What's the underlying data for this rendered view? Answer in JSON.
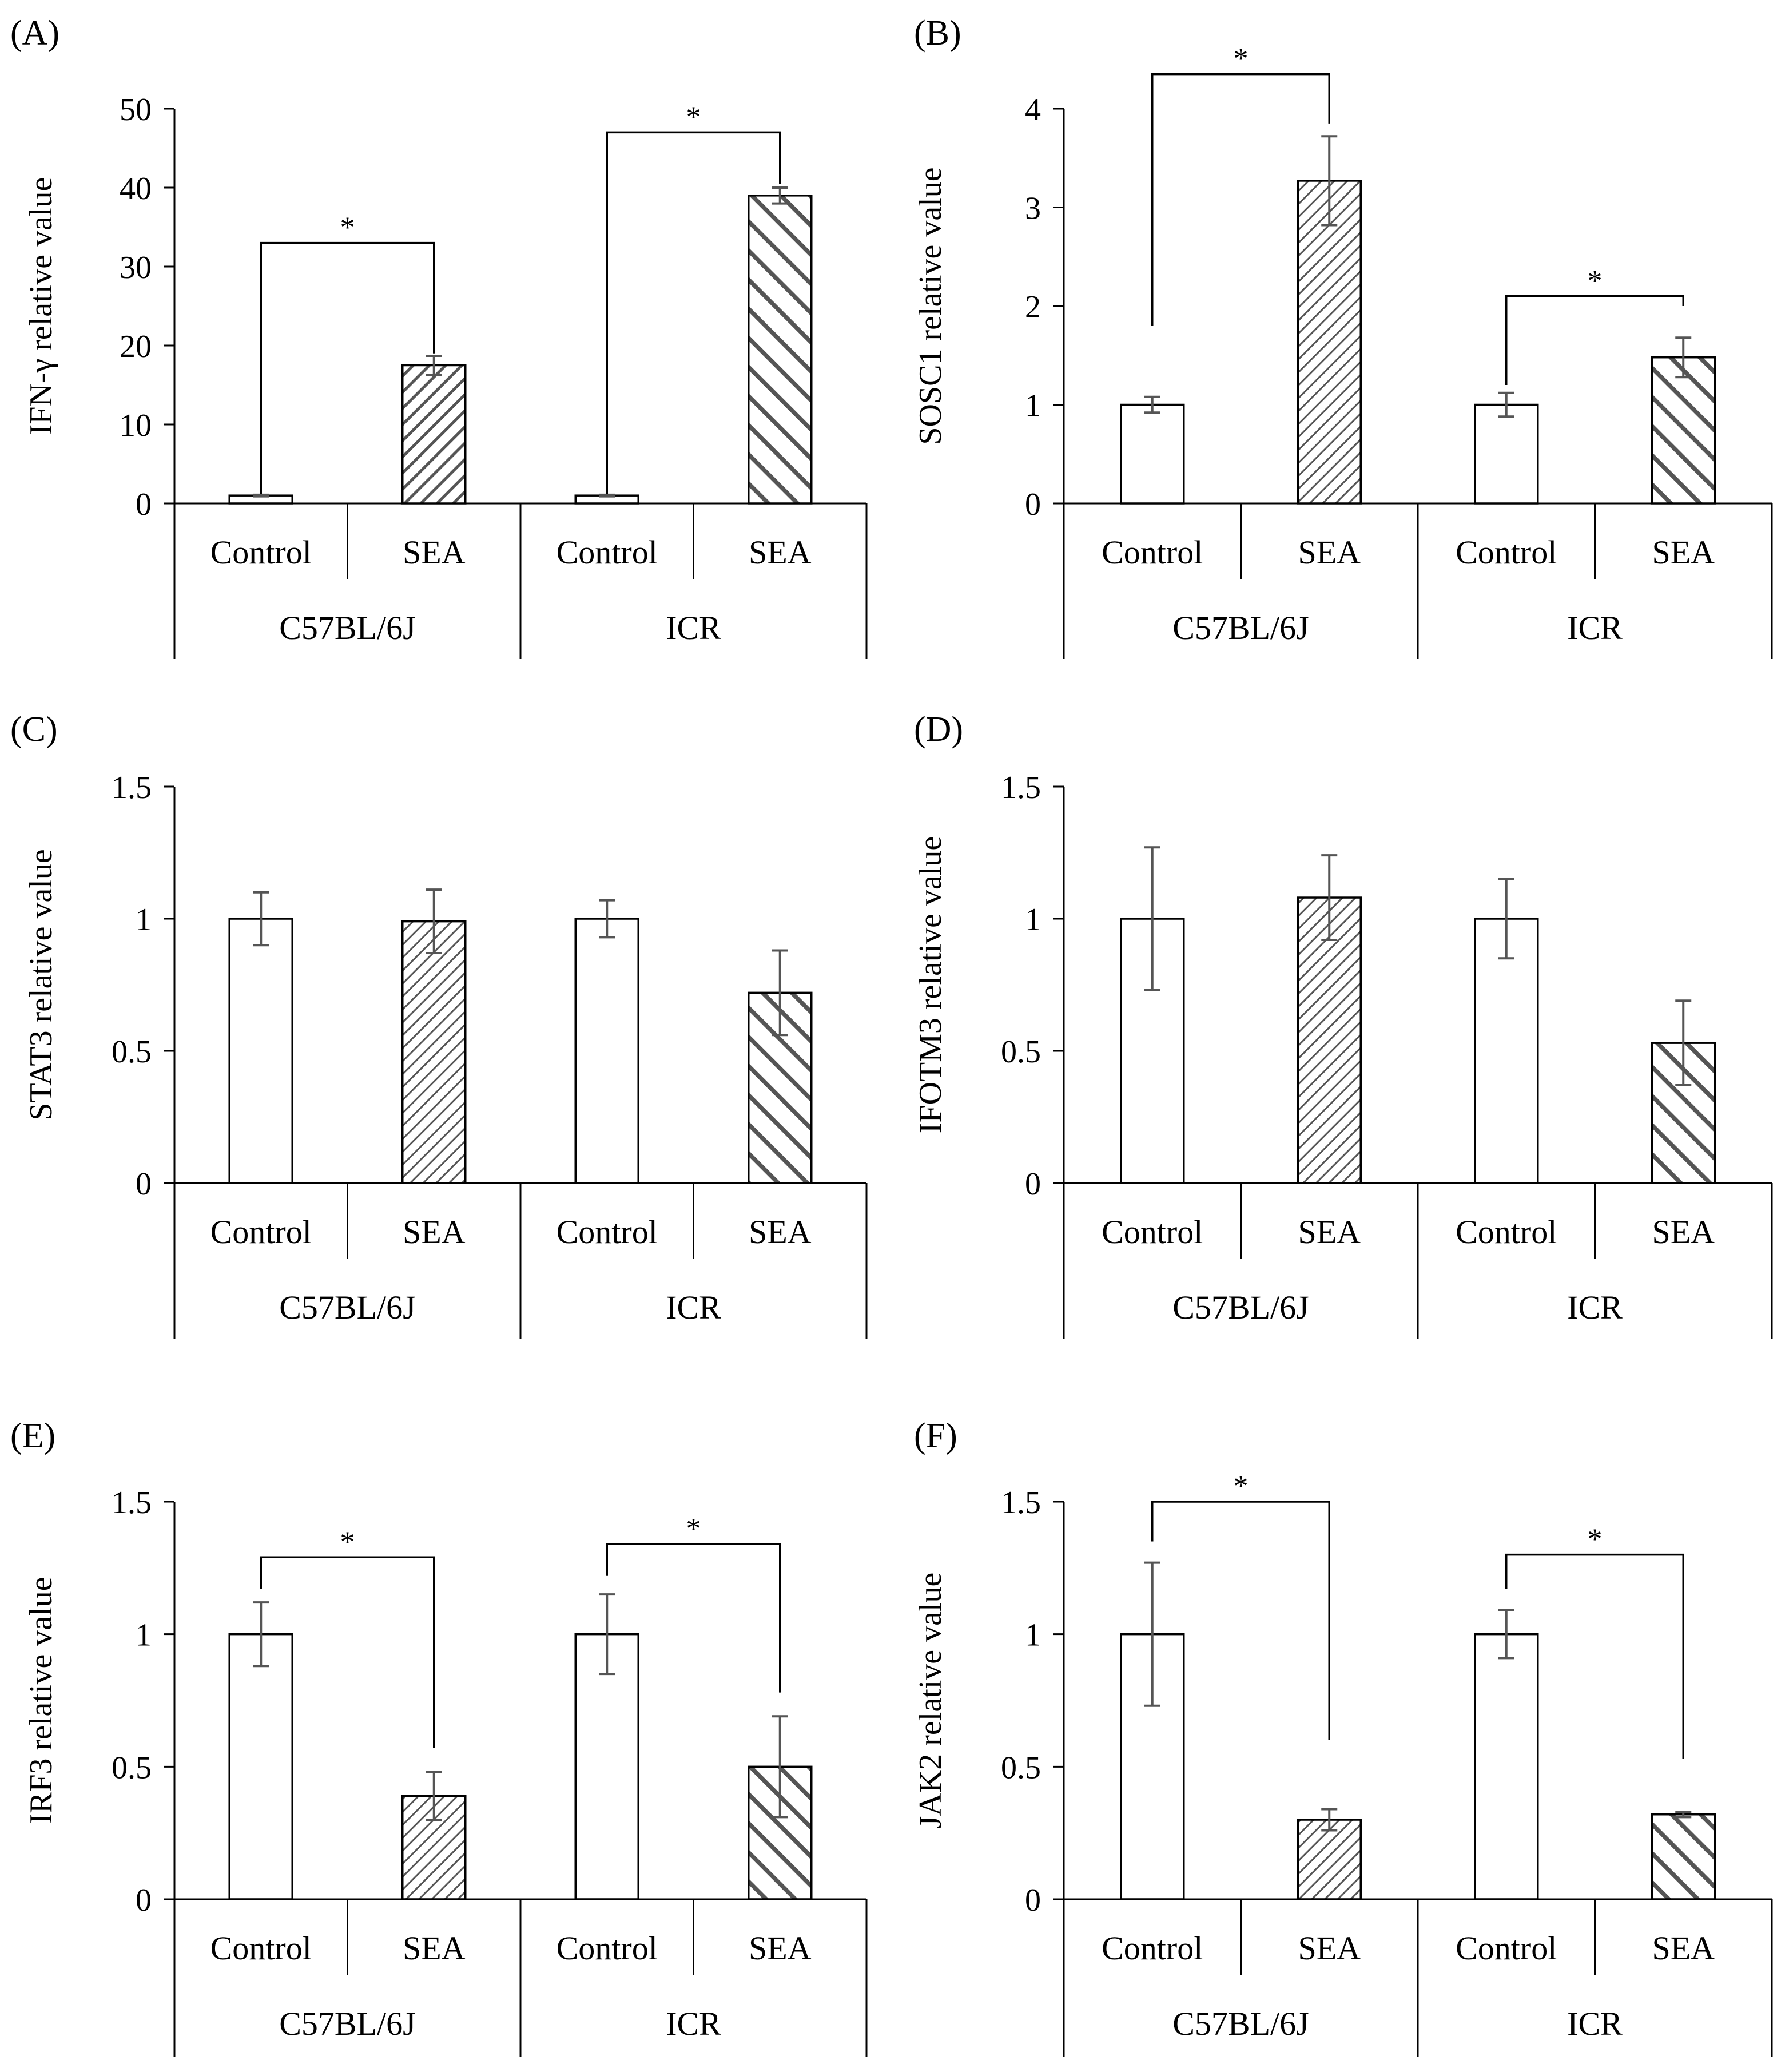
{
  "figure": {
    "categories": [
      "Control",
      "SEA",
      "Control",
      "SEA"
    ],
    "groups": [
      "C57BL/6J",
      "ICR"
    ],
    "bar_fill": "#ffffff",
    "hatch_color": "#555555",
    "error_color": "#555555"
  },
  "chart_data": [
    {
      "type": "bar",
      "panel_label": "(A)",
      "ylabel": "IFN-γ relative value",
      "categories": [
        "Control",
        "SEA",
        "Control",
        "SEA"
      ],
      "groups": [
        "C57BL/6J",
        "ICR"
      ],
      "values": [
        1,
        17.5,
        1,
        39
      ],
      "errors": [
        0.1,
        1.2,
        0.1,
        1.0
      ],
      "ylim": [
        0,
        50
      ],
      "yticks": [
        0,
        10,
        20,
        30,
        40,
        50
      ],
      "ytick_labels": [
        "0",
        "10",
        "20",
        "30",
        "40",
        "50"
      ],
      "significance": [
        {
          "from": 0,
          "to": 1,
          "label": "*",
          "level": 33,
          "left_bottom": 1.2,
          "right_bottom": 19.0
        },
        {
          "from": 2,
          "to": 3,
          "label": "*",
          "level": 47,
          "left_bottom": 1.2,
          "right_bottom": 40.5
        }
      ]
    },
    {
      "type": "bar",
      "panel_label": "(B)",
      "ylabel": "SOSC1 relative value",
      "categories": [
        "Control",
        "SEA",
        "Control",
        "SEA"
      ],
      "groups": [
        "C57BL/6J",
        "ICR"
      ],
      "values": [
        1,
        3.27,
        1,
        1.48
      ],
      "errors": [
        0.08,
        0.45,
        0.12,
        0.2
      ],
      "ylim": [
        0,
        4
      ],
      "yticks": [
        0,
        1,
        2,
        3,
        4
      ],
      "ytick_labels": [
        "0",
        "1",
        "2",
        "3",
        "4"
      ],
      "significance": [
        {
          "from": 0,
          "to": 1,
          "label": "*",
          "level": 4.35,
          "left_bottom": 1.8,
          "right_bottom": 3.85
        },
        {
          "from": 2,
          "to": 3,
          "label": "*",
          "level": 2.1,
          "left_bottom": 1.2,
          "right_bottom": 2.0
        }
      ]
    },
    {
      "type": "bar",
      "panel_label": "(C)",
      "ylabel": "STAT3 relative value",
      "categories": [
        "Control",
        "SEA",
        "Control",
        "SEA"
      ],
      "groups": [
        "C57BL/6J",
        "ICR"
      ],
      "values": [
        1,
        0.99,
        1,
        0.72
      ],
      "errors": [
        0.1,
        0.12,
        0.07,
        0.16
      ],
      "ylim": [
        0,
        1.5
      ],
      "yticks": [
        0,
        0.5,
        1,
        1.5
      ],
      "ytick_labels": [
        "0",
        "0.5",
        "1",
        "1.5"
      ],
      "significance": []
    },
    {
      "type": "bar",
      "panel_label": "(D)",
      "ylabel": "IFOTM3 relative value",
      "categories": [
        "Control",
        "SEA",
        "Control",
        "SEA"
      ],
      "groups": [
        "C57BL/6J",
        "ICR"
      ],
      "values": [
        1,
        1.08,
        1,
        0.53
      ],
      "errors": [
        0.27,
        0.16,
        0.15,
        0.16
      ],
      "ylim": [
        0,
        1.5
      ],
      "yticks": [
        0,
        0.5,
        1,
        1.5
      ],
      "ytick_labels": [
        "0",
        "0.5",
        "1",
        "1.5"
      ],
      "significance": []
    },
    {
      "type": "bar",
      "panel_label": "(E)",
      "ylabel": "IRF3 relative value",
      "categories": [
        "Control",
        "SEA",
        "Control",
        "SEA"
      ],
      "groups": [
        "C57BL/6J",
        "ICR"
      ],
      "values": [
        1,
        0.39,
        1,
        0.5
      ],
      "errors": [
        0.12,
        0.09,
        0.15,
        0.19
      ],
      "ylim": [
        0,
        1.5
      ],
      "yticks": [
        0,
        0.5,
        1,
        1.5
      ],
      "ytick_labels": [
        "0",
        "0.5",
        "1",
        "1.5"
      ],
      "significance": [
        {
          "from": 0,
          "to": 1,
          "label": "*",
          "level": 1.29,
          "left_bottom": 1.17,
          "right_bottom": 0.57
        },
        {
          "from": 2,
          "to": 3,
          "label": "*",
          "level": 1.34,
          "left_bottom": 1.22,
          "right_bottom": 0.78
        }
      ]
    },
    {
      "type": "bar",
      "panel_label": "(F)",
      "ylabel": "JAK2 relative value",
      "categories": [
        "Control",
        "SEA",
        "Control",
        "SEA"
      ],
      "groups": [
        "C57BL/6J",
        "ICR"
      ],
      "values": [
        1,
        0.3,
        1,
        0.32
      ],
      "errors": [
        0.27,
        0.04,
        0.09,
        0.01
      ],
      "ylim": [
        0,
        1.5
      ],
      "yticks": [
        0,
        0.5,
        1,
        1.5
      ],
      "ytick_labels": [
        "0",
        "0.5",
        "1",
        "1.5"
      ],
      "significance": [
        {
          "from": 0,
          "to": 1,
          "label": "*",
          "level": 1.5,
          "left_bottom": 1.35,
          "right_bottom": 0.6
        },
        {
          "from": 2,
          "to": 3,
          "label": "*",
          "level": 1.3,
          "left_bottom": 1.17,
          "right_bottom": 0.53
        }
      ]
    }
  ]
}
